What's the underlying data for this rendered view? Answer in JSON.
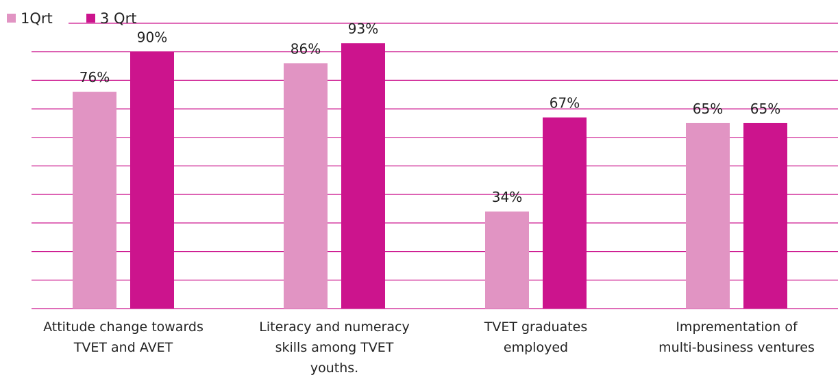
{
  "chart_data": {
    "type": "bar",
    "categories": [
      [
        "Attitude  change towards",
        "TVET and AVET"
      ],
      [
        "Literacy and numeracy",
        "skills among TVET",
        "youths."
      ],
      [
        "TVET graduates",
        "employed"
      ],
      [
        "Imprementation of",
        "multi-business ventures"
      ]
    ],
    "series": [
      {
        "name": "1Qrt",
        "values": [
          76,
          86,
          34,
          65
        ],
        "labels": [
          "76%",
          "86%",
          "34%",
          "65%"
        ],
        "color": "#e194c3"
      },
      {
        "name": "3 Qrt",
        "values": [
          90,
          93,
          67,
          65
        ],
        "labels": [
          "90%",
          "93%",
          "67%",
          "65%"
        ],
        "color": "#cc148d"
      }
    ],
    "ylim": [
      0,
      100
    ],
    "grid": true,
    "legend": "top-left",
    "grid_color": "#cc148d"
  }
}
